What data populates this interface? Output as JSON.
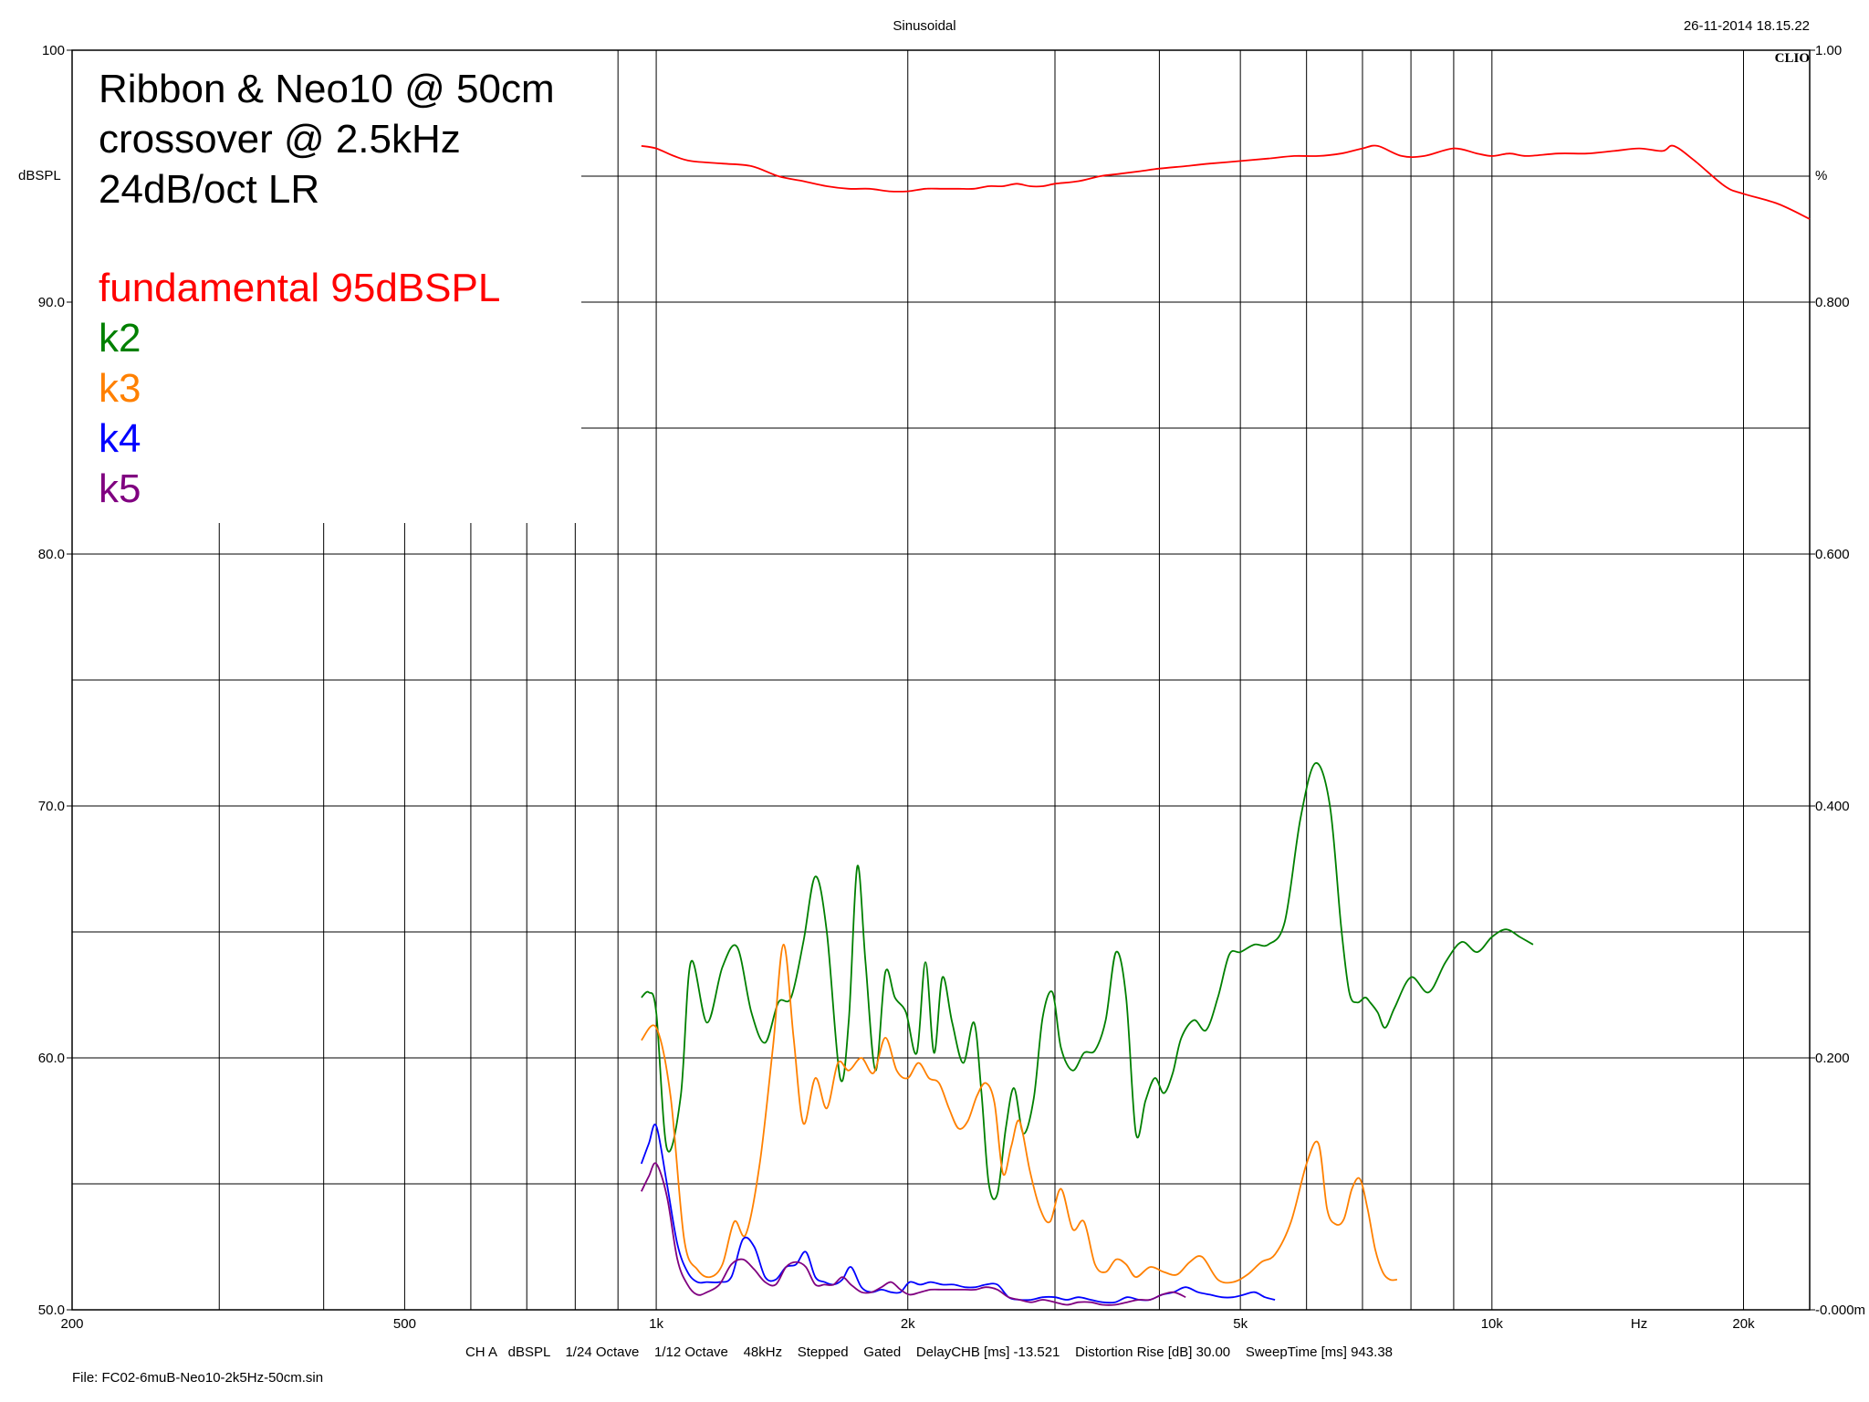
{
  "header": {
    "title": "Sinusoidal",
    "timestamp": "26-11-2014 18.15.22",
    "logo": "CLIO"
  },
  "footer": {
    "settings": "CH A   dBSPL    1/24 Octave    1/12 Octave    48kHz    Stepped    Gated    DelayCHB [ms] -13.521    Distortion Rise [dB] 30.00    SweepTime [ms] 943.38",
    "file": "File: FC02-6muB-Neo10-2k5Hz-50cm.sin"
  },
  "legend": {
    "lines": [
      "Ribbon & Neo10 @ 50cm",
      "crossover @ 2.5kHz",
      "24dB/oct LR"
    ]
  },
  "chart_data": {
    "type": "line",
    "x_scale": "log",
    "xlim": [
      200,
      24000
    ],
    "ylim": [
      50,
      100
    ],
    "ylabel": "dBSPL",
    "y_ticks": [
      {
        "v": 100,
        "label": "100"
      },
      {
        "v": 90,
        "label": "90.0"
      },
      {
        "v": 80,
        "label": "80.0"
      },
      {
        "v": 70,
        "label": "70.0"
      },
      {
        "v": 60,
        "label": "60.0"
      },
      {
        "v": 50,
        "label": "50.0"
      }
    ],
    "y2_label": "%",
    "y2_ticks": [
      {
        "v": 100,
        "label": "1.00"
      },
      {
        "v": 90,
        "label": "0.800"
      },
      {
        "v": 80,
        "label": "0.600"
      },
      {
        "v": 70,
        "label": "0.400"
      },
      {
        "v": 60,
        "label": "0.200"
      },
      {
        "v": 50,
        "label": "-0.000m"
      }
    ],
    "x_ticks": [
      {
        "v": 200,
        "label": "200"
      },
      {
        "v": 500,
        "label": "500"
      },
      {
        "v": 1000,
        "label": "1k"
      },
      {
        "v": 2000,
        "label": "2k"
      },
      {
        "v": 5000,
        "label": "5k"
      },
      {
        "v": 10000,
        "label": "10k"
      },
      {
        "v": 15000,
        "label": "Hz"
      },
      {
        "v": 20000,
        "label": "20k"
      }
    ],
    "x_grid": [
      300,
      400,
      500,
      600,
      700,
      800,
      900,
      1000,
      2000,
      3000,
      4000,
      5000,
      6000,
      7000,
      8000,
      9000,
      10000,
      20000
    ],
    "y_grid": [
      55,
      60,
      65,
      70,
      75,
      80,
      85,
      90,
      95
    ],
    "series": [
      {
        "name": "fundamental 95dBSPL",
        "color": "#ff0000",
        "x": [
          960,
          1000,
          1050,
          1100,
          1200,
          1300,
          1400,
          1500,
          1600,
          1700,
          1800,
          1900,
          2000,
          2100,
          2200,
          2300,
          2400,
          2500,
          2600,
          2700,
          2800,
          2900,
          3000,
          3200,
          3400,
          3600,
          3800,
          4000,
          4300,
          4600,
          5000,
          5400,
          5800,
          6200,
          6600,
          7000,
          7300,
          7800,
          8300,
          9000,
          9600,
          10000,
          10500,
          11000,
          12000,
          13000,
          14000,
          15000,
          16000,
          16500,
          17500,
          19000,
          20000,
          22000,
          24000
        ],
        "y": [
          96.2,
          96.1,
          95.8,
          95.6,
          95.5,
          95.4,
          95.0,
          94.8,
          94.6,
          94.5,
          94.5,
          94.4,
          94.4,
          94.5,
          94.5,
          94.5,
          94.5,
          94.6,
          94.6,
          94.7,
          94.6,
          94.6,
          94.7,
          94.8,
          95.0,
          95.1,
          95.2,
          95.3,
          95.4,
          95.5,
          95.6,
          95.7,
          95.8,
          95.8,
          95.9,
          96.1,
          96.2,
          95.8,
          95.8,
          96.1,
          95.9,
          95.8,
          95.9,
          95.8,
          95.9,
          95.9,
          96.0,
          96.1,
          96.0,
          96.2,
          95.6,
          94.6,
          94.3,
          93.9,
          93.3
        ]
      },
      {
        "name": "k2",
        "color": "#008000",
        "x": [
          960,
          980,
          1000,
          1030,
          1070,
          1100,
          1150,
          1200,
          1250,
          1300,
          1350,
          1400,
          1450,
          1500,
          1550,
          1600,
          1660,
          1700,
          1740,
          1780,
          1830,
          1880,
          1930,
          1990,
          2050,
          2100,
          2150,
          2200,
          2260,
          2330,
          2400,
          2450,
          2500,
          2560,
          2620,
          2680,
          2750,
          2830,
          2900,
          2980,
          3050,
          3150,
          3250,
          3350,
          3450,
          3550,
          3650,
          3750,
          3850,
          3950,
          4050,
          4150,
          4250,
          4400,
          4550,
          4700,
          4850,
          5000,
          5200,
          5400,
          5650,
          5900,
          6150,
          6400,
          6600,
          6750,
          6900,
          7050,
          7150,
          7300,
          7450,
          7650,
          8000,
          8400,
          8800,
          9200,
          9600,
          10000,
          10400,
          10800,
          11200
        ],
        "y": [
          62.4,
          62.6,
          61.8,
          56.4,
          58.5,
          63.8,
          61.4,
          63.6,
          64.4,
          61.8,
          60.6,
          62.2,
          62.4,
          64.6,
          67.2,
          65.0,
          59.2,
          61.5,
          67.6,
          63.8,
          59.5,
          63.4,
          62.4,
          61.8,
          60.2,
          63.8,
          60.2,
          63.2,
          61.4,
          59.8,
          61.4,
          58.6,
          55.0,
          54.6,
          57.2,
          58.8,
          57.0,
          58.4,
          61.6,
          62.6,
          60.4,
          59.5,
          60.2,
          60.3,
          61.5,
          64.2,
          62.4,
          57.0,
          58.3,
          59.2,
          58.6,
          59.4,
          60.8,
          61.5,
          61.1,
          62.4,
          64.1,
          64.2,
          64.5,
          64.5,
          65.4,
          69.5,
          71.7,
          70.0,
          65.2,
          62.6,
          62.2,
          62.4,
          62.2,
          61.8,
          61.2,
          62.0,
          63.2,
          62.6,
          63.8,
          64.6,
          64.2,
          64.8,
          65.1,
          64.8,
          64.5
        ]
      },
      {
        "name": "k3",
        "color": "#ff8000",
        "x": [
          960,
          1000,
          1040,
          1080,
          1120,
          1160,
          1200,
          1240,
          1280,
          1330,
          1380,
          1420,
          1460,
          1500,
          1550,
          1600,
          1650,
          1700,
          1760,
          1820,
          1880,
          1940,
          2000,
          2060,
          2120,
          2180,
          2240,
          2300,
          2360,
          2420,
          2480,
          2540,
          2600,
          2660,
          2720,
          2800,
          2880,
          2960,
          3050,
          3150,
          3250,
          3350,
          3450,
          3550,
          3650,
          3750,
          3900,
          4050,
          4200,
          4350,
          4500,
          4700,
          4900,
          5100,
          5300,
          5500,
          5750,
          6000,
          6200,
          6350,
          6500,
          6650,
          6800,
          6950,
          7100,
          7250,
          7400,
          7550,
          7700
        ],
        "y": [
          60.7,
          61.2,
          58.5,
          52.8,
          51.6,
          51.3,
          51.8,
          53.5,
          53.0,
          55.8,
          60.5,
          64.5,
          60.8,
          57.4,
          59.2,
          58.0,
          59.8,
          59.5,
          60.0,
          59.4,
          60.8,
          59.5,
          59.2,
          59.8,
          59.2,
          59.0,
          58.0,
          57.2,
          57.5,
          58.5,
          59.0,
          58.2,
          55.4,
          56.5,
          57.5,
          55.5,
          54.0,
          53.5,
          54.8,
          53.2,
          53.5,
          51.8,
          51.5,
          52.0,
          51.8,
          51.3,
          51.7,
          51.5,
          51.4,
          51.9,
          52.1,
          51.2,
          51.1,
          51.4,
          51.9,
          52.2,
          53.5,
          55.8,
          56.6,
          54.0,
          53.4,
          53.6,
          54.8,
          55.2,
          54.0,
          52.4,
          51.5,
          51.2,
          51.2
        ]
      },
      {
        "name": "k4",
        "color": "#0000ff",
        "x": [
          960,
          980,
          1000,
          1030,
          1060,
          1090,
          1120,
          1150,
          1190,
          1230,
          1270,
          1310,
          1350,
          1390,
          1430,
          1470,
          1510,
          1550,
          1590,
          1630,
          1670,
          1710,
          1760,
          1810,
          1860,
          1910,
          1960,
          2010,
          2070,
          2130,
          2200,
          2270,
          2340,
          2410,
          2480,
          2560,
          2640,
          2720,
          2810,
          2900,
          3000,
          3100,
          3200,
          3310,
          3420,
          3540,
          3660,
          3780,
          3900,
          4030,
          4160,
          4300,
          4450,
          4600,
          4750,
          4900,
          5050,
          5200,
          5350,
          5500
        ],
        "y": [
          55.8,
          56.6,
          57.3,
          55.0,
          52.6,
          51.5,
          51.1,
          51.1,
          51.1,
          51.3,
          52.8,
          52.5,
          51.3,
          51.2,
          51.7,
          51.8,
          52.3,
          51.3,
          51.1,
          51.0,
          51.2,
          51.7,
          50.9,
          50.7,
          50.8,
          50.7,
          50.7,
          51.1,
          51.0,
          51.1,
          51.0,
          51.0,
          50.9,
          50.9,
          51.0,
          51.0,
          50.5,
          50.4,
          50.4,
          50.5,
          50.5,
          50.4,
          50.5,
          50.4,
          50.3,
          50.3,
          50.5,
          50.4,
          50.4,
          50.6,
          50.7,
          50.9,
          50.7,
          50.6,
          50.5,
          50.5,
          50.6,
          50.7,
          50.5,
          50.4
        ]
      },
      {
        "name": "k5",
        "color": "#800080",
        "x": [
          960,
          980,
          1000,
          1030,
          1060,
          1090,
          1120,
          1150,
          1190,
          1230,
          1270,
          1310,
          1350,
          1390,
          1430,
          1470,
          1510,
          1550,
          1590,
          1630,
          1670,
          1710,
          1760,
          1810,
          1860,
          1910,
          1960,
          2010,
          2070,
          2130,
          2200,
          2270,
          2340,
          2410,
          2480,
          2560,
          2640,
          2720,
          2810,
          2900,
          3000,
          3100,
          3200,
          3310,
          3420,
          3540,
          3660,
          3780,
          3900,
          4030,
          4160,
          4300
        ],
        "y": [
          54.7,
          55.3,
          55.8,
          54.5,
          52.0,
          51.0,
          50.6,
          50.7,
          51.0,
          51.8,
          52.0,
          51.6,
          51.1,
          51.0,
          51.7,
          51.9,
          51.7,
          51.0,
          51.0,
          51.0,
          51.3,
          51.0,
          50.7,
          50.7,
          50.9,
          51.1,
          50.8,
          50.6,
          50.7,
          50.8,
          50.8,
          50.8,
          50.8,
          50.8,
          50.9,
          50.8,
          50.5,
          50.4,
          50.3,
          50.4,
          50.3,
          50.2,
          50.3,
          50.3,
          50.2,
          50.2,
          50.3,
          50.4,
          50.4,
          50.6,
          50.7,
          50.5
        ]
      }
    ]
  }
}
